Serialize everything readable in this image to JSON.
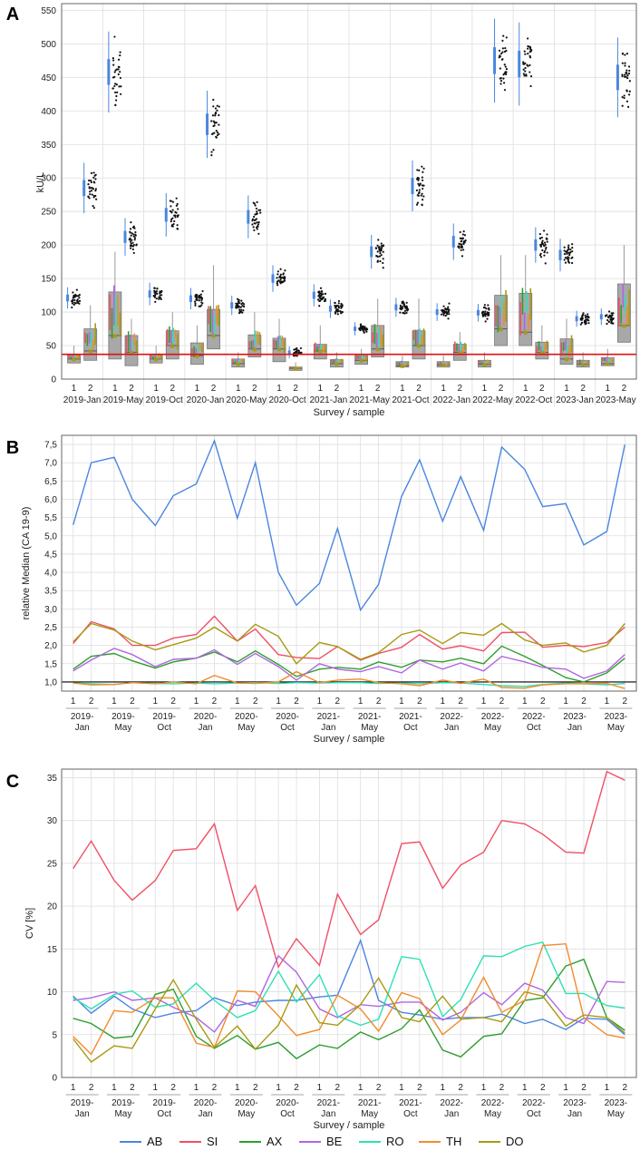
{
  "colors": {
    "AB": "#4a86e0",
    "SI": "#ef4f65",
    "AX": "#2e9e2e",
    "BE": "#b066e0",
    "RO": "#2fe0b4",
    "TH": "#f08c2c",
    "DO": "#a89a12",
    "grid": "#dedede",
    "frame": "#666666",
    "box": "#9a9a9a",
    "ref": "#e01010"
  },
  "legend": [
    "AB",
    "SI",
    "AX",
    "BE",
    "RO",
    "TH",
    "DO"
  ],
  "chart_data": [
    {
      "panel": "A",
      "type": "box",
      "ylabel": "kU/L",
      "xlabel": "Survey / sample",
      "ylim": [
        0,
        560
      ],
      "yticks": [
        0,
        50,
        100,
        150,
        200,
        250,
        300,
        350,
        400,
        450,
        500,
        550
      ],
      "reference_line": 37,
      "surveys": [
        "2019-Jan",
        "2019-May",
        "2019-Oct",
        "2020-Jan",
        "2020-May",
        "2020-Oct",
        "2021-Jan",
        "2021-May",
        "2021-Oct",
        "2022-Jan",
        "2022-May",
        "2022-Oct",
        "2023-Jan",
        "2023-May"
      ],
      "sample_labels": [
        "1",
        "2"
      ],
      "reference_medians": [
        [
          121,
          285
        ],
        [
          458,
          212
        ],
        [
          127,
          245
        ],
        [
          120,
          380
        ],
        [
          110,
          242
        ],
        [
          150,
          40
        ],
        [
          125,
          105
        ],
        [
          75,
          190
        ],
        [
          107,
          288
        ],
        [
          100,
          205
        ],
        [
          99,
          475
        ],
        [
          470,
          200
        ],
        [
          185,
          90
        ],
        [
          93,
          450
        ]
      ],
      "boxes": [
        [
          [
            24,
            30,
            36,
            50
          ],
          [
            28,
            42,
            75,
            110
          ]
        ],
        [
          [
            30,
            65,
            130,
            190
          ],
          [
            20,
            40,
            65,
            90
          ]
        ],
        [
          [
            24,
            30,
            37,
            50
          ],
          [
            30,
            50,
            72,
            100
          ]
        ],
        [
          [
            22,
            35,
            54,
            80
          ],
          [
            45,
            65,
            104,
            170
          ]
        ],
        [
          [
            18,
            23,
            30,
            40
          ],
          [
            33,
            45,
            66,
            100
          ]
        ],
        [
          [
            26,
            45,
            61,
            90
          ],
          [
            13,
            16,
            18,
            25
          ]
        ],
        [
          [
            30,
            42,
            52,
            80
          ],
          [
            18,
            23,
            29,
            40
          ]
        ],
        [
          [
            22,
            28,
            35,
            45
          ],
          [
            33,
            45,
            80,
            120
          ]
        ],
        [
          [
            18,
            20,
            26,
            35
          ],
          [
            30,
            50,
            72,
            120
          ]
        ],
        [
          [
            18,
            21,
            26,
            35
          ],
          [
            28,
            40,
            52,
            70
          ]
        ],
        [
          [
            18,
            22,
            28,
            40
          ],
          [
            50,
            75,
            125,
            185
          ]
        ],
        [
          [
            50,
            70,
            128,
            185
          ],
          [
            30,
            40,
            55,
            80
          ]
        ],
        [
          [
            22,
            30,
            60,
            90
          ],
          [
            18,
            22,
            28,
            40
          ]
        ],
        [
          [
            20,
            23,
            32,
            45
          ],
          [
            55,
            80,
            142,
            200
          ]
        ]
      ]
    },
    {
      "panel": "B",
      "type": "line",
      "ylabel": "relative Median (CA 19-9)",
      "xlabel": "Survey / sample",
      "ylim": [
        0.75,
        7.75
      ],
      "yticks": [
        "1,0",
        "1,5",
        "2,0",
        "2,5",
        "3,0",
        "3,5",
        "4,0",
        "4,5",
        "5,0",
        "5,5",
        "6,0",
        "6,5",
        "7,0",
        "7,5"
      ],
      "ytick_values": [
        1.0,
        1.5,
        2.0,
        2.5,
        3.0,
        3.5,
        4.0,
        4.5,
        5.0,
        5.5,
        6.0,
        6.5,
        7.0,
        7.5
      ],
      "reference_line": 1.0,
      "sample_labels": [
        "1",
        "2"
      ],
      "surveys": [
        "2019-\nJan",
        "2019-\nMay",
        "2019-\nOct",
        "2020-\nJan",
        "2020-\nMay",
        "2020-\nOct",
        "2021-\nJan",
        "2021-\nMay",
        "2021-\nOct",
        "2022-\nJan",
        "2022-\nMay",
        "2022-\nOct",
        "2023-\nJan",
        "2023-\nMay"
      ],
      "series": [
        {
          "name": "AB",
          "values": [
            5.3,
            7.0,
            7.15,
            6.0,
            5.28,
            6.1,
            6.42,
            7.6,
            5.48,
            7.0,
            4.0,
            3.1,
            3.7,
            5.2,
            2.97,
            3.67,
            6.08,
            7.08,
            5.4,
            6.62,
            5.15,
            7.43,
            6.82,
            5.8,
            5.88,
            4.75,
            5.12,
            7.5
          ]
        },
        {
          "name": "SI",
          "values": [
            2.05,
            2.65,
            2.45,
            2.0,
            2.0,
            2.2,
            2.3,
            2.8,
            2.12,
            2.45,
            1.75,
            1.67,
            1.64,
            1.97,
            1.6,
            1.78,
            1.95,
            2.3,
            1.9,
            1.99,
            1.85,
            2.35,
            2.36,
            1.95,
            2.0,
            1.97,
            2.08,
            2.5
          ]
        },
        {
          "name": "AX",
          "values": [
            1.35,
            1.7,
            1.78,
            1.58,
            1.38,
            1.55,
            1.65,
            1.82,
            1.55,
            1.85,
            1.48,
            1.15,
            1.35,
            1.4,
            1.35,
            1.55,
            1.4,
            1.6,
            1.55,
            1.65,
            1.5,
            1.98,
            1.7,
            1.45,
            1.12,
            1.0,
            1.25,
            1.65
          ]
        },
        {
          "name": "BE",
          "values": [
            1.3,
            1.6,
            1.92,
            1.75,
            1.42,
            1.62,
            1.65,
            1.88,
            1.48,
            1.78,
            1.42,
            1.05,
            1.5,
            1.35,
            1.28,
            1.42,
            1.25,
            1.6,
            1.35,
            1.52,
            1.3,
            1.7,
            1.55,
            1.4,
            1.35,
            1.1,
            1.3,
            1.75
          ]
        },
        {
          "name": "RO",
          "values": [
            0.97,
            0.95,
            0.93,
            0.98,
            0.96,
            0.95,
            0.97,
            0.95,
            0.97,
            0.98,
            0.96,
            0.98,
            0.97,
            0.98,
            0.98,
            0.96,
            0.97,
            0.95,
            0.98,
            0.97,
            0.93,
            0.9,
            0.88,
            0.93,
            0.97,
            0.95,
            0.92,
            0.96
          ]
        },
        {
          "name": "TH",
          "values": [
            0.97,
            0.92,
            0.93,
            0.98,
            0.95,
            1.0,
            0.95,
            1.18,
            0.97,
            0.96,
            1.0,
            1.28,
            0.98,
            1.05,
            1.08,
            0.98,
            0.95,
            0.9,
            1.05,
            0.96,
            1.08,
            0.85,
            0.83,
            0.92,
            0.95,
            0.95,
            0.96,
            0.82
          ]
        },
        {
          "name": "DO",
          "values": [
            2.1,
            2.6,
            2.42,
            2.12,
            1.88,
            2.02,
            2.2,
            2.5,
            2.12,
            2.58,
            2.25,
            1.5,
            2.08,
            1.97,
            1.62,
            1.8,
            2.3,
            2.42,
            2.05,
            2.35,
            2.28,
            2.6,
            2.15,
            2.0,
            2.07,
            1.82,
            2.0,
            2.6
          ]
        }
      ]
    },
    {
      "panel": "C",
      "type": "line",
      "ylabel": "CV [%]",
      "xlabel": "Survey / sample",
      "ylim": [
        0,
        36
      ],
      "yticks": [
        0,
        5,
        10,
        15,
        20,
        25,
        30,
        35
      ],
      "sample_labels": [
        "1",
        "2"
      ],
      "surveys": [
        "2019-\nJan",
        "2019-\nMay",
        "2019-\nOct",
        "2020-\nJan",
        "2020-\nMay",
        "2020-\nOct",
        "2021-\nJan",
        "2021-\nMay",
        "2021-\nOct",
        "2022-\nJan",
        "2022-\nMay",
        "2022-\nOct",
        "2023-\nJan",
        "2023-\nMay"
      ],
      "series": [
        {
          "name": "AB",
          "values": [
            9.5,
            7.5,
            9.5,
            8.0,
            7.0,
            7.5,
            7.8,
            9.3,
            8.4,
            8.8,
            9.0,
            9.0,
            9.4,
            9.6,
            16.0,
            9.0,
            7.6,
            7.3,
            6.8,
            7.0,
            7.0,
            7.4,
            6.3,
            6.8,
            5.6,
            6.9,
            6.8,
            5.0
          ]
        },
        {
          "name": "SI",
          "values": [
            24.4,
            27.6,
            23.0,
            20.7,
            23.0,
            26.5,
            26.7,
            29.6,
            19.5,
            22.4,
            12.9,
            16.2,
            13.1,
            21.4,
            16.7,
            18.4,
            27.3,
            27.5,
            22.1,
            24.8,
            26.3,
            30.0,
            29.6,
            28.4,
            26.3,
            26.2,
            35.7,
            34.7
          ]
        },
        {
          "name": "AX",
          "values": [
            6.9,
            6.3,
            4.6,
            4.8,
            9.7,
            10.3,
            4.8,
            3.4,
            4.9,
            3.3,
            4.1,
            2.2,
            3.8,
            3.4,
            5.3,
            4.4,
            5.7,
            7.9,
            3.2,
            2.4,
            4.8,
            5.1,
            9.0,
            9.3,
            13.0,
            13.8,
            7.0,
            5.5
          ]
        },
        {
          "name": "BE",
          "values": [
            9.0,
            9.3,
            10.0,
            9.0,
            9.3,
            8.2,
            7.0,
            5.3,
            9.0,
            8.3,
            14.2,
            12.3,
            8.0,
            7.0,
            8.5,
            8.3,
            8.8,
            8.8,
            6.7,
            7.6,
            9.9,
            8.5,
            11.0,
            10.2,
            7.0,
            6.3,
            11.2,
            11.1
          ]
        },
        {
          "name": "RO",
          "values": [
            9.3,
            8.0,
            9.7,
            10.1,
            8.2,
            8.6,
            11.0,
            9.0,
            7.0,
            7.8,
            12.4,
            8.8,
            12.0,
            7.2,
            6.1,
            6.8,
            14.1,
            13.8,
            7.1,
            9.1,
            14.2,
            14.1,
            15.3,
            15.8,
            9.8,
            9.8,
            8.4,
            8.1
          ]
        },
        {
          "name": "TH",
          "values": [
            4.8,
            2.7,
            7.8,
            7.6,
            9.3,
            9.3,
            4.0,
            3.5,
            10.1,
            10.0,
            7.2,
            4.9,
            5.6,
            9.6,
            8.0,
            5.4,
            9.9,
            9.2,
            5.0,
            6.7,
            11.7,
            7.6,
            9.0,
            15.4,
            15.6,
            7.0,
            5.0,
            4.6
          ]
        },
        {
          "name": "DO",
          "values": [
            4.5,
            1.8,
            3.7,
            3.4,
            8.0,
            11.4,
            6.8,
            3.5,
            6.0,
            3.3,
            6.1,
            10.8,
            6.4,
            6.1,
            8.5,
            11.6,
            7.0,
            6.5,
            9.5,
            6.8,
            7.0,
            6.5,
            10.0,
            9.5,
            6.0,
            7.3,
            7.0,
            5.2
          ]
        }
      ]
    }
  ],
  "panels": {
    "A": "A",
    "B": "B",
    "C": "C"
  }
}
